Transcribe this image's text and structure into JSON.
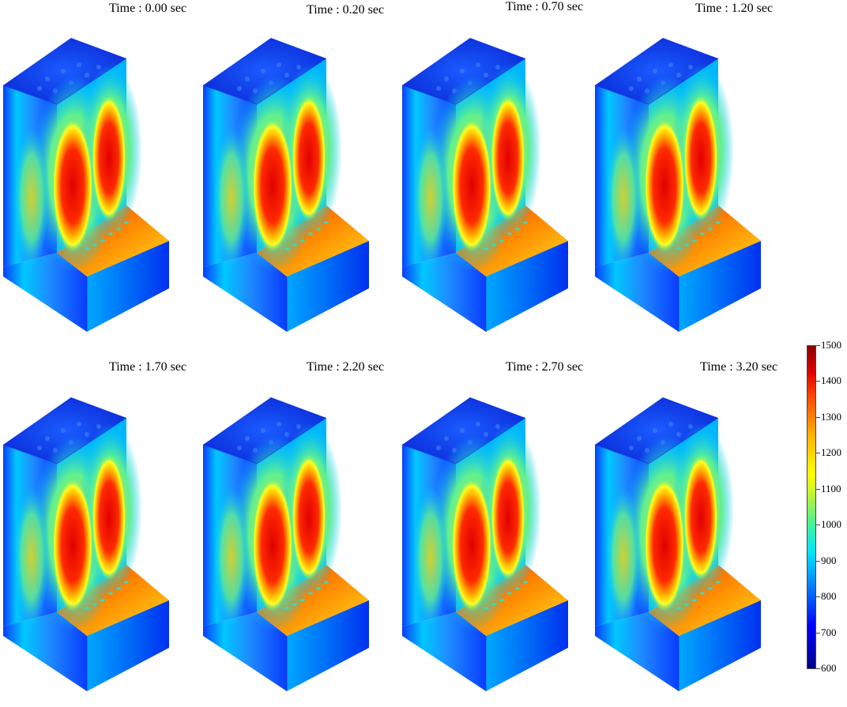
{
  "panels": [
    {
      "time_label": "Time : 0.00 sec"
    },
    {
      "time_label": "Time : 0.20 sec"
    },
    {
      "time_label": "Time : 0.70 sec"
    },
    {
      "time_label": "Time : 1.20 sec"
    },
    {
      "time_label": "Time : 1.70 sec"
    },
    {
      "time_label": "Time : 2.20 sec"
    },
    {
      "time_label": "Time : 2.70 sec"
    },
    {
      "time_label": "Time : 3.20 sec"
    }
  ],
  "colorbar": {
    "min": 600,
    "max": 1500,
    "ticks": [
      "1500",
      "1400",
      "1300",
      "1200",
      "1100",
      "1000",
      "900",
      "800",
      "700",
      "600"
    ],
    "colors": [
      "#00008a",
      "#0000ff",
      "#0070ff",
      "#00e5ff",
      "#3cf2a0",
      "#ffff00",
      "#ff4a00",
      "#8a0000"
    ]
  }
}
